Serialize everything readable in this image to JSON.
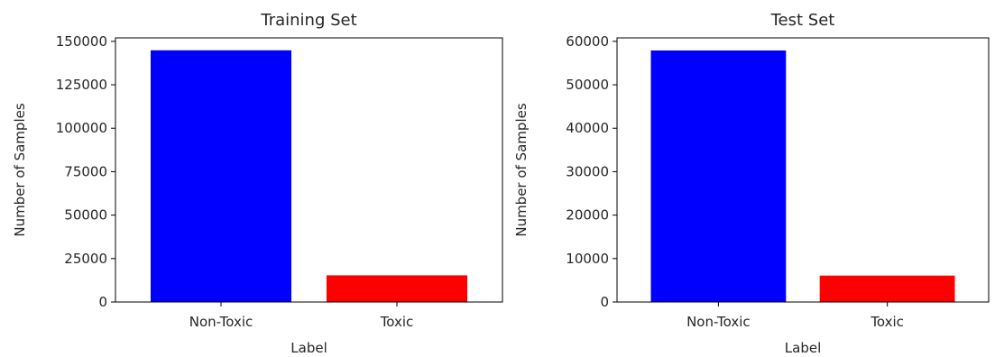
{
  "chart_data": [
    {
      "type": "bar",
      "title": "Training Set",
      "xlabel": "Label",
      "ylabel": "Number of Samples",
      "categories": [
        "Non-Toxic",
        "Toxic"
      ],
      "values": [
        144835,
        15360
      ],
      "colors": [
        "#0000ff",
        "#ff0000"
      ],
      "ylim": [
        0,
        152000
      ],
      "yticks": [
        0,
        25000,
        50000,
        75000,
        100000,
        125000,
        150000
      ],
      "grid": false
    },
    {
      "type": "bar",
      "title": "Test Set",
      "xlabel": "Label",
      "ylabel": "Number of Samples",
      "categories": [
        "Non-Toxic",
        "Toxic"
      ],
      "values": [
        57888,
        6090
      ],
      "colors": [
        "#0000ff",
        "#ff0000"
      ],
      "ylim": [
        0,
        60800
      ],
      "yticks": [
        0,
        10000,
        20000,
        30000,
        40000,
        50000,
        60000
      ],
      "grid": false
    }
  ]
}
